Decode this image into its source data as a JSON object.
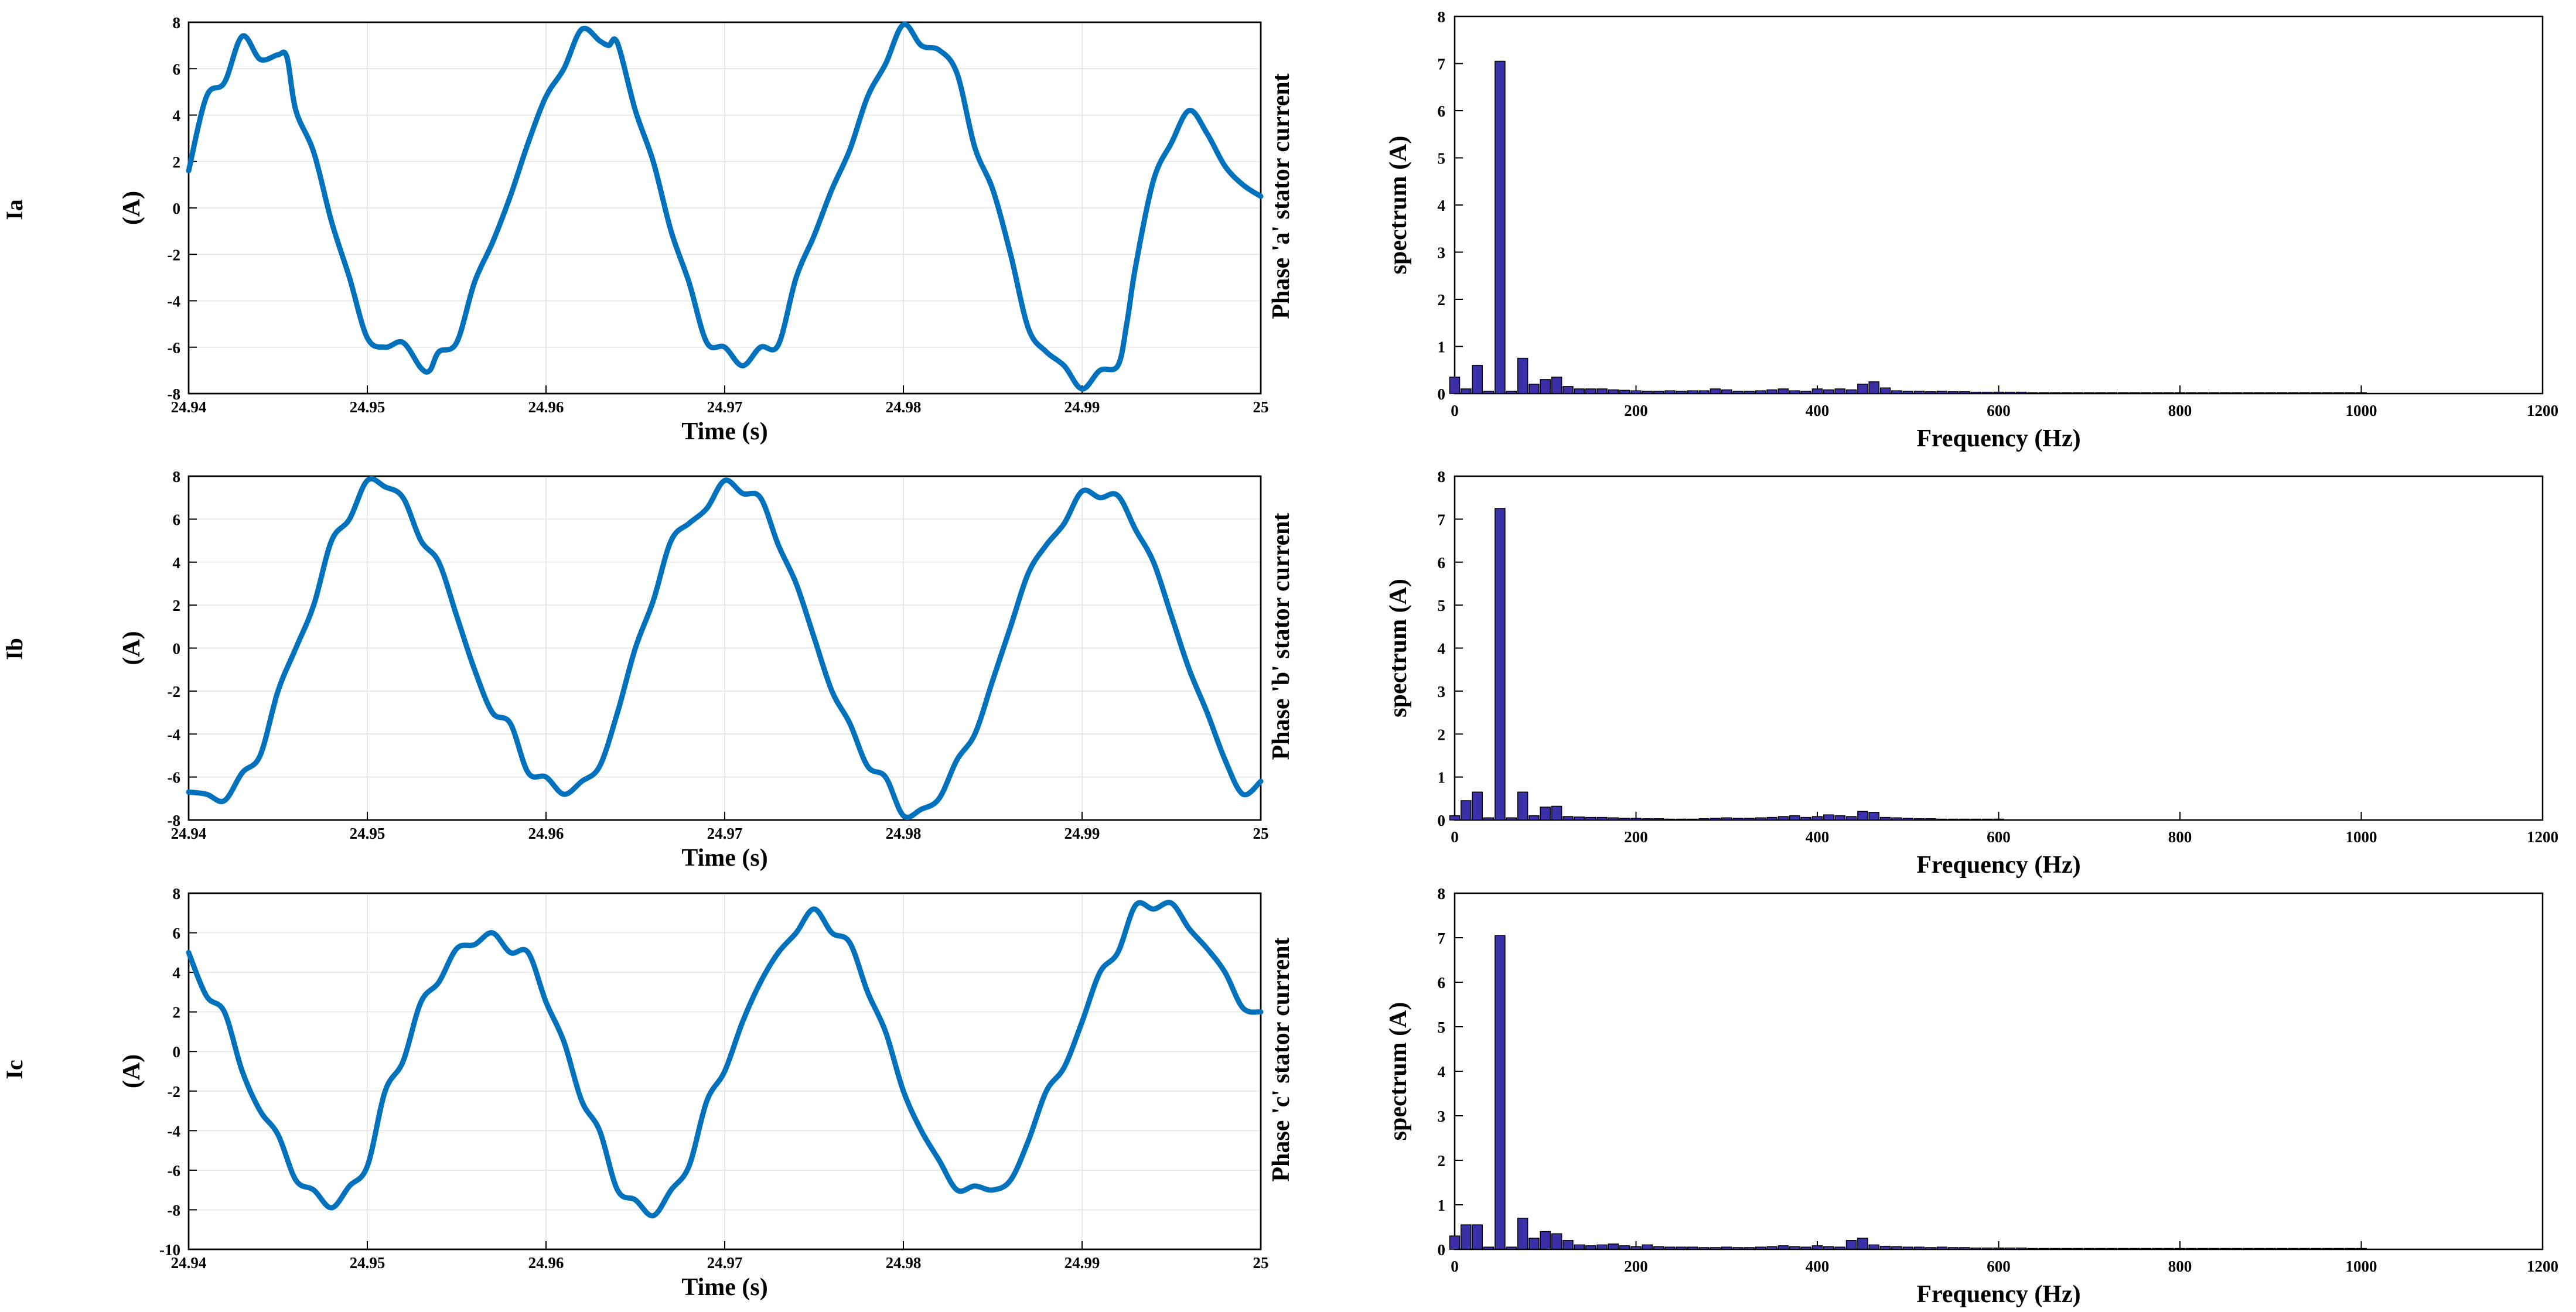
{
  "colors": {
    "time_line": "#0072BD",
    "spectrum_bar": "#3A30A8"
  },
  "rows": [
    {
      "row_label": "Ia",
      "time": {
        "type": "line",
        "ylabel": "(A)",
        "side_label": "Phase 'a' stator current",
        "xlabel": "Time (s)",
        "xlim": [
          24.94,
          25.0
        ],
        "ylim": [
          -8,
          8
        ],
        "xtick_labels": [
          "24.94",
          "24.95",
          "24.96",
          "24.97",
          "24.98",
          "24.99",
          "25"
        ],
        "ytick_labels": [
          "-8",
          "-6",
          "-4",
          "-2",
          "0",
          "2",
          "4",
          "6",
          "8"
        ],
        "grid": true,
        "series": [
          {
            "x": [
              24.94,
              24.941,
              24.942,
              24.943,
              24.944,
              24.945,
              24.9455,
              24.946,
              24.947,
              24.948,
              24.949,
              24.95,
              24.951,
              24.952,
              24.953,
              24.9535,
              24.954,
              24.955,
              24.956,
              24.957,
              24.958,
              24.959,
              24.96,
              24.961,
              24.962,
              24.963,
              24.9635,
              24.964,
              24.965,
              24.966,
              24.967,
              24.968,
              24.969,
              24.97,
              24.971,
              24.972,
              24.973,
              24.974,
              24.975,
              24.976,
              24.977,
              24.978,
              24.979,
              24.98,
              24.981,
              24.982,
              24.983,
              24.984,
              24.985,
              24.986,
              24.987,
              24.988,
              24.989,
              24.99,
              24.991,
              24.992,
              24.9925,
              24.993,
              24.994,
              24.995,
              24.996,
              24.997,
              24.998,
              24.999,
              25.0
            ],
            "y": [
              1.6,
              4.8,
              5.4,
              7.4,
              6.4,
              6.6,
              6.5,
              4.2,
              2.4,
              -0.6,
              -3.0,
              -5.6,
              -6.0,
              -5.8,
              -6.9,
              -7.0,
              -6.2,
              -5.8,
              -3.2,
              -1.5,
              0.5,
              2.8,
              4.8,
              6.0,
              7.7,
              7.2,
              7.0,
              7.1,
              4.2,
              2.0,
              -1.0,
              -3.2,
              -5.8,
              -6.0,
              -6.8,
              -6.0,
              -5.9,
              -3.0,
              -1.2,
              0.8,
              2.5,
              4.8,
              6.2,
              7.9,
              7.0,
              6.8,
              5.8,
              2.6,
              0.8,
              -2.0,
              -5.2,
              -6.2,
              -6.8,
              -7.8,
              -7.0,
              -6.8,
              -5.0,
              -2.5,
              1.2,
              2.8,
              4.2,
              3.2,
              1.8,
              1.0,
              0.5
            ]
          }
        ]
      },
      "spectrum": {
        "type": "bar",
        "ylabel": "spectrum (A)",
        "xlabel": "Frequency (Hz)",
        "xlim": [
          0,
          1200
        ],
        "ylim": [
          0,
          8
        ],
        "xtick_labels": [
          "0",
          "200",
          "400",
          "600",
          "800",
          "1000",
          "1200"
        ],
        "ytick_labels": [
          "0",
          "1",
          "2",
          "3",
          "4",
          "5",
          "6",
          "7",
          "8"
        ],
        "grid": false,
        "x": [
          0,
          12.5,
          25,
          37.5,
          50,
          62.5,
          75,
          87.5,
          100,
          112.5,
          125,
          137.5,
          150,
          162.5,
          175,
          187.5,
          200,
          212.5,
          225,
          237.5,
          250,
          262.5,
          275,
          287.5,
          300,
          312.5,
          325,
          337.5,
          350,
          362.5,
          375,
          387.5,
          400,
          412.5,
          425,
          437.5,
          450,
          462.5,
          475,
          487.5,
          500,
          512.5,
          525,
          537.5,
          550,
          562.5,
          575,
          587.5,
          600,
          612.5,
          625,
          637.5,
          650,
          662.5,
          675,
          687.5,
          700,
          712.5,
          725,
          737.5,
          750,
          762.5,
          775,
          787.5,
          800,
          812.5,
          825,
          837.5,
          850,
          862.5,
          875,
          887.5,
          900,
          912.5,
          925,
          937.5,
          950,
          962.5,
          975,
          987.5,
          1000
        ],
        "values": [
          0.35,
          0.1,
          0.6,
          0.05,
          7.05,
          0.05,
          0.75,
          0.2,
          0.3,
          0.35,
          0.15,
          0.1,
          0.1,
          0.1,
          0.08,
          0.07,
          0.06,
          0.05,
          0.05,
          0.06,
          0.05,
          0.06,
          0.06,
          0.1,
          0.08,
          0.05,
          0.05,
          0.06,
          0.08,
          0.1,
          0.06,
          0.05,
          0.1,
          0.08,
          0.1,
          0.08,
          0.2,
          0.25,
          0.12,
          0.06,
          0.05,
          0.05,
          0.04,
          0.05,
          0.04,
          0.04,
          0.03,
          0.03,
          0.03,
          0.03,
          0.03,
          0.02,
          0.02,
          0.02,
          0.02,
          0.02,
          0.02,
          0.02,
          0.02,
          0.02,
          0.02,
          0.02,
          0.02,
          0.02,
          0.02,
          0.02,
          0.02,
          0.02,
          0.02,
          0.02,
          0.02,
          0.02,
          0.02,
          0.02,
          0.02,
          0.02,
          0.02,
          0.02,
          0.02,
          0.02,
          0.02
        ]
      }
    },
    {
      "row_label": "Ib",
      "time": {
        "type": "line",
        "ylabel": "(A)",
        "side_label": "Phase 'b' stator current",
        "xlabel": "Time (s)",
        "xlim": [
          24.94,
          25.0
        ],
        "ylim": [
          -8,
          8
        ],
        "xtick_labels": [
          "24.94",
          "24.95",
          "24.96",
          "24.97",
          "24.98",
          "24.99",
          "25"
        ],
        "ytick_labels": [
          "-8",
          "-6",
          "-4",
          "-2",
          "0",
          "2",
          "4",
          "6",
          "8"
        ],
        "grid": true,
        "series": [
          {
            "x": [
              24.94,
              24.941,
              24.942,
              24.943,
              24.944,
              24.945,
              24.946,
              24.947,
              24.948,
              24.949,
              24.95,
              24.951,
              24.952,
              24.953,
              24.954,
              24.955,
              24.956,
              24.957,
              24.958,
              24.959,
              24.96,
              24.961,
              24.962,
              24.963,
              24.964,
              24.965,
              24.966,
              24.967,
              24.968,
              24.969,
              24.97,
              24.971,
              24.972,
              24.973,
              24.974,
              24.975,
              24.976,
              24.977,
              24.978,
              24.979,
              24.98,
              24.981,
              24.982,
              24.983,
              24.984,
              24.985,
              24.986,
              24.987,
              24.988,
              24.989,
              24.99,
              24.991,
              24.992,
              24.993,
              24.994,
              24.995,
              24.996,
              24.997,
              24.998,
              24.999,
              25.0
            ],
            "y": [
              -6.7,
              -6.8,
              -7.1,
              -5.8,
              -5.0,
              -2.0,
              0.0,
              2.0,
              5.0,
              6.0,
              7.8,
              7.5,
              7.0,
              5.0,
              4.0,
              1.5,
              -1.0,
              -3.0,
              -3.5,
              -5.8,
              -6.0,
              -6.8,
              -6.2,
              -5.5,
              -3.0,
              0.0,
              2.2,
              5.0,
              5.8,
              6.5,
              7.8,
              7.2,
              7.0,
              4.8,
              3.0,
              0.5,
              -2.0,
              -3.5,
              -5.5,
              -6.0,
              -7.8,
              -7.5,
              -7.0,
              -5.2,
              -4.0,
              -1.5,
              1.0,
              3.5,
              4.8,
              5.8,
              7.3,
              7.0,
              7.1,
              5.5,
              4.0,
              1.5,
              -1.0,
              -3.0,
              -5.2,
              -6.8,
              -6.2
            ]
          }
        ]
      },
      "spectrum": {
        "type": "bar",
        "ylabel": "spectrum (A)",
        "xlabel": "Frequency (Hz)",
        "xlim": [
          0,
          1200
        ],
        "ylim": [
          0,
          8
        ],
        "xtick_labels": [
          "0",
          "200",
          "400",
          "600",
          "800",
          "1000",
          "1200"
        ],
        "ytick_labels": [
          "0",
          "1",
          "2",
          "3",
          "4",
          "5",
          "6",
          "7",
          "8"
        ],
        "grid": false,
        "x": [
          0,
          12.5,
          25,
          37.5,
          50,
          62.5,
          75,
          87.5,
          100,
          112.5,
          125,
          137.5,
          150,
          162.5,
          175,
          187.5,
          200,
          212.5,
          225,
          237.5,
          250,
          262.5,
          275,
          287.5,
          300,
          312.5,
          325,
          337.5,
          350,
          362.5,
          375,
          387.5,
          400,
          412.5,
          425,
          437.5,
          450,
          462.5,
          475,
          487.5,
          500,
          512.5,
          525,
          537.5,
          550,
          562.5,
          575,
          587.5,
          600
        ],
        "values": [
          0.1,
          0.45,
          0.65,
          0.05,
          7.25,
          0.05,
          0.65,
          0.1,
          0.3,
          0.32,
          0.08,
          0.07,
          0.06,
          0.06,
          0.05,
          0.04,
          0.04,
          0.03,
          0.03,
          0.02,
          0.02,
          0.02,
          0.03,
          0.04,
          0.05,
          0.04,
          0.04,
          0.05,
          0.06,
          0.08,
          0.1,
          0.06,
          0.08,
          0.12,
          0.1,
          0.08,
          0.2,
          0.18,
          0.06,
          0.05,
          0.04,
          0.03,
          0.03,
          0.02,
          0.02,
          0.02,
          0.02,
          0.02,
          0.02
        ]
      }
    },
    {
      "row_label": "Ic",
      "time": {
        "type": "line",
        "ylabel": "(A)",
        "side_label": "Phase 'c' stator current",
        "xlabel": "Time (s)",
        "xlim": [
          24.94,
          25.0
        ],
        "ylim": [
          -10,
          8
        ],
        "xtick_labels": [
          "24.94",
          "24.95",
          "24.96",
          "24.97",
          "24.98",
          "24.99",
          "25"
        ],
        "ytick_labels": [
          "-10",
          "-8",
          "-6",
          "-4",
          "-2",
          "0",
          "2",
          "4",
          "6",
          "8"
        ],
        "grid": true,
        "series": [
          {
            "x": [
              24.94,
              24.941,
              24.942,
              24.943,
              24.944,
              24.945,
              24.946,
              24.947,
              24.948,
              24.949,
              24.95,
              24.951,
              24.952,
              24.953,
              24.954,
              24.955,
              24.956,
              24.957,
              24.958,
              24.959,
              24.96,
              24.961,
              24.962,
              24.963,
              24.964,
              24.965,
              24.966,
              24.967,
              24.968,
              24.969,
              24.97,
              24.971,
              24.972,
              24.973,
              24.974,
              24.975,
              24.976,
              24.977,
              24.978,
              24.979,
              24.98,
              24.981,
              24.982,
              24.983,
              24.984,
              24.985,
              24.986,
              24.987,
              24.988,
              24.989,
              24.99,
              24.991,
              24.992,
              24.993,
              24.994,
              24.995,
              24.996,
              24.997,
              24.998,
              24.999,
              25.0
            ],
            "y": [
              5.0,
              2.8,
              2.0,
              -1.0,
              -3.0,
              -4.2,
              -6.5,
              -7.0,
              -7.9,
              -6.8,
              -5.8,
              -2.0,
              -0.5,
              2.5,
              3.5,
              5.2,
              5.4,
              6.0,
              5.0,
              5.0,
              2.5,
              0.5,
              -2.5,
              -4.0,
              -7.0,
              -7.5,
              -8.3,
              -7.0,
              -5.8,
              -2.5,
              -1.0,
              1.5,
              3.5,
              5.0,
              6.0,
              7.2,
              6.0,
              5.5,
              3.0,
              1.0,
              -2.0,
              -4.0,
              -5.5,
              -7.0,
              -6.8,
              -7.0,
              -6.5,
              -4.5,
              -2.0,
              -0.8,
              1.5,
              4.0,
              5.0,
              7.4,
              7.2,
              7.5,
              6.2,
              5.2,
              4.0,
              2.2,
              2.0
            ]
          }
        ]
      },
      "spectrum": {
        "type": "bar",
        "ylabel": "spectrum (A)",
        "xlabel": "Frequency (Hz)",
        "xlim": [
          0,
          1200
        ],
        "ylim": [
          0,
          8
        ],
        "xtick_labels": [
          "0",
          "200",
          "400",
          "600",
          "800",
          "1000",
          "1200"
        ],
        "ytick_labels": [
          "0",
          "1",
          "2",
          "3",
          "4",
          "5",
          "6",
          "7",
          "8"
        ],
        "grid": false,
        "x": [
          0,
          12.5,
          25,
          37.5,
          50,
          62.5,
          75,
          87.5,
          100,
          112.5,
          125,
          137.5,
          150,
          162.5,
          175,
          187.5,
          200,
          212.5,
          225,
          237.5,
          250,
          262.5,
          275,
          287.5,
          300,
          312.5,
          325,
          337.5,
          350,
          362.5,
          375,
          387.5,
          400,
          412.5,
          425,
          437.5,
          450,
          462.5,
          475,
          487.5,
          500,
          512.5,
          525,
          537.5,
          550,
          562.5,
          575,
          587.5,
          600,
          612.5,
          625,
          637.5,
          650,
          662.5,
          675,
          687.5,
          700,
          712.5,
          725,
          737.5,
          750,
          762.5,
          775,
          787.5,
          800,
          812.5,
          825,
          837.5,
          850,
          862.5,
          875,
          887.5,
          900,
          912.5,
          925,
          937.5,
          950,
          962.5,
          975,
          987.5,
          1000
        ],
        "values": [
          0.3,
          0.55,
          0.55,
          0.05,
          7.05,
          0.05,
          0.7,
          0.25,
          0.4,
          0.35,
          0.2,
          0.1,
          0.08,
          0.1,
          0.12,
          0.08,
          0.06,
          0.1,
          0.06,
          0.05,
          0.05,
          0.05,
          0.04,
          0.04,
          0.05,
          0.04,
          0.04,
          0.05,
          0.06,
          0.08,
          0.06,
          0.05,
          0.08,
          0.06,
          0.05,
          0.2,
          0.25,
          0.1,
          0.07,
          0.06,
          0.05,
          0.05,
          0.04,
          0.05,
          0.04,
          0.04,
          0.03,
          0.03,
          0.03,
          0.03,
          0.03,
          0.02,
          0.02,
          0.02,
          0.02,
          0.02,
          0.02,
          0.02,
          0.02,
          0.02,
          0.02,
          0.02,
          0.02,
          0.02,
          0.02,
          0.02,
          0.02,
          0.02,
          0.02,
          0.02,
          0.02,
          0.02,
          0.02,
          0.02,
          0.02,
          0.02,
          0.02,
          0.02,
          0.02,
          0.02,
          0.02
        ]
      }
    }
  ]
}
